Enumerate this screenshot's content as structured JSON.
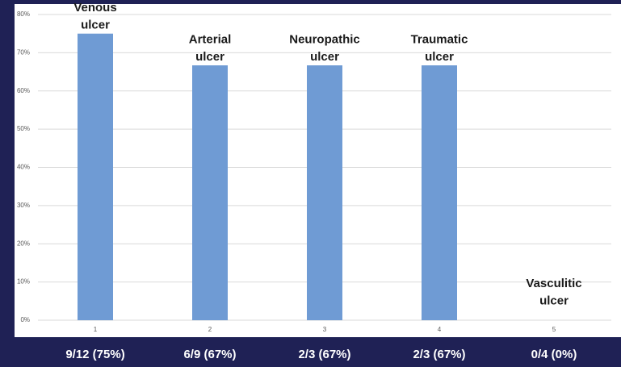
{
  "chart_data": {
    "type": "bar",
    "categories": [
      "1",
      "2",
      "3",
      "4",
      "5"
    ],
    "values": [
      75,
      66.7,
      66.7,
      66.7,
      0
    ],
    "value_labels": [
      "9/12 (75%)",
      "6/9 (67%)",
      "2/3 (67%)",
      "2/3 (67%)",
      "0/4 (0%)"
    ],
    "annotations": [
      [
        "Venous",
        "ulcer"
      ],
      [
        "Arterial",
        "ulcer"
      ],
      [
        "Neuropathic",
        "ulcer"
      ],
      [
        "Traumatic",
        "ulcer"
      ],
      [
        "Vasculitic",
        "ulcer"
      ]
    ],
    "color": "#6f9bd4",
    "ylim": [
      0,
      80
    ],
    "yticks": [
      {
        "value": 0,
        "label": "0%"
      },
      {
        "value": 10,
        "label": "10%"
      },
      {
        "value": 20,
        "label": "20%"
      },
      {
        "value": 30,
        "label": "30%"
      },
      {
        "value": 40,
        "label": "40%"
      },
      {
        "value": 50,
        "label": "50%"
      },
      {
        "value": 60,
        "label": "60%"
      },
      {
        "value": 70,
        "label": "70%"
      },
      {
        "value": 80,
        "label": "80%"
      }
    ],
    "grid": true
  }
}
